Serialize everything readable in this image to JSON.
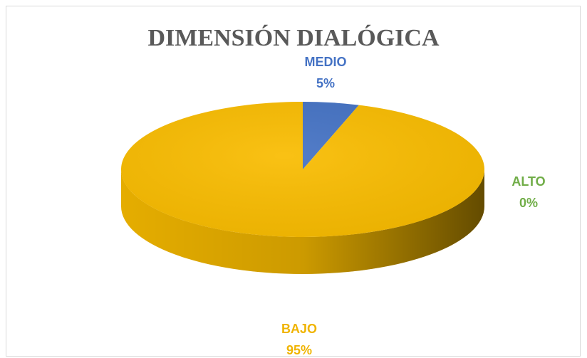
{
  "chart_data": {
    "type": "pie",
    "title": "DIMENSIÓN DIALÓGICA",
    "categories": [
      "MEDIO",
      "ALTO",
      "BAJO"
    ],
    "values": [
      5,
      0,
      95
    ],
    "value_labels": [
      "5%",
      "0%",
      "95%"
    ],
    "colors": [
      "#4472c4",
      "#70ad47",
      "#f9bc00"
    ]
  }
}
